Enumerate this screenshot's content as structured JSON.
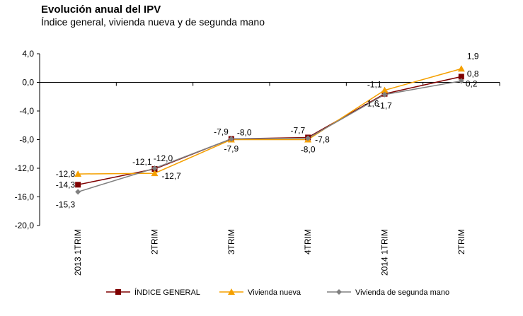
{
  "chart_data": {
    "type": "line",
    "title": "Evolución anual del IPV",
    "subtitle": "Índice general, vivienda  nueva y de segunda mano",
    "categories": [
      "2013 1TRIM",
      "2TRIM",
      "3TRIM",
      "4TRIM",
      "2014 1TRIM",
      "2TRIM"
    ],
    "ylim": [
      -20,
      4
    ],
    "yticks": [
      "4,0",
      "0,0",
      "-4,0",
      "-8,0",
      "-12,0",
      "-16,0",
      "-20,0"
    ],
    "ytick_values": [
      4,
      0,
      -4,
      -8,
      -12,
      -16,
      -20
    ],
    "legend_position": "bottom",
    "series": [
      {
        "name": "ÍNDICE GENERAL",
        "color": "#7f0000",
        "marker": "square",
        "values": [
          -14.3,
          -12.1,
          -7.9,
          -7.7,
          -1.6,
          0.8
        ],
        "labels": [
          "-14,3",
          "-12,1",
          "-7,9",
          "-7,7",
          "-1,6",
          "0,8"
        ]
      },
      {
        "name": "Vivienda nueva",
        "color": "#f5a000",
        "marker": "triangle",
        "values": [
          -12.8,
          -12.7,
          -8.0,
          -8.0,
          -1.1,
          1.9
        ],
        "labels": [
          "-12,8",
          "-12,7",
          "-8,0",
          "-8,0",
          "-1,1",
          "1,9"
        ]
      },
      {
        "name": "Vivienda de segunda mano",
        "color": "#808080",
        "marker": "diamond",
        "values": [
          -15.3,
          -12.0,
          -7.9,
          -7.8,
          -1.7,
          0.2
        ],
        "labels": [
          "-15,3",
          "-12,0",
          "-7,9",
          "-7,8",
          "-1,7",
          "0,2"
        ]
      }
    ]
  }
}
